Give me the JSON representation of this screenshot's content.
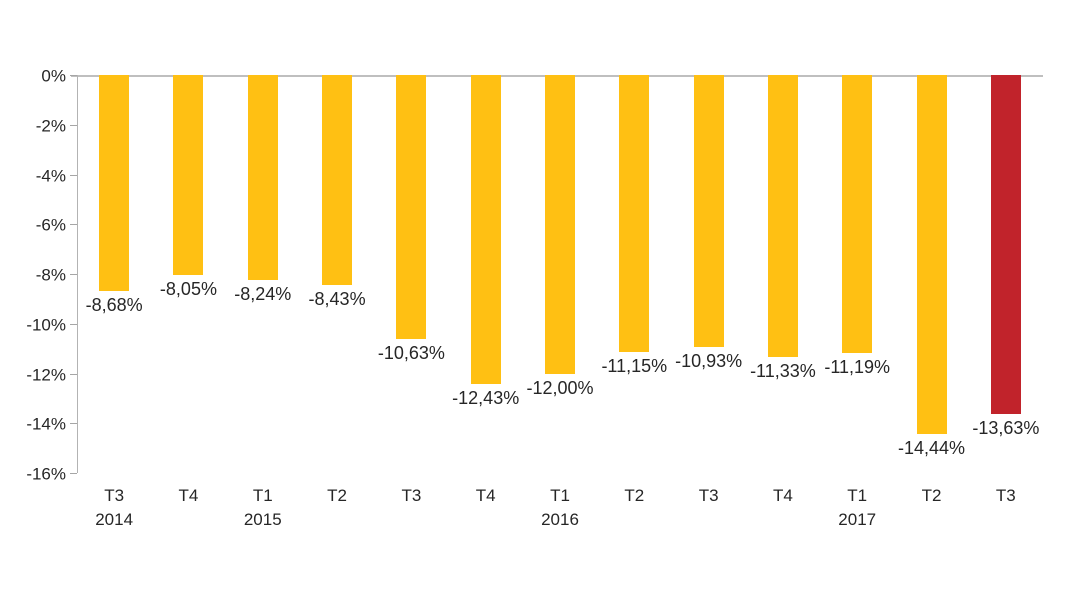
{
  "chart_data": {
    "type": "bar",
    "title": "",
    "xlabel": "",
    "ylabel": "",
    "categories": [
      {
        "quarter": "T3",
        "year": "2014"
      },
      {
        "quarter": "T4",
        "year": ""
      },
      {
        "quarter": "T1",
        "year": "2015"
      },
      {
        "quarter": "T2",
        "year": ""
      },
      {
        "quarter": "T3",
        "year": ""
      },
      {
        "quarter": "T4",
        "year": ""
      },
      {
        "quarter": "T1",
        "year": "2016"
      },
      {
        "quarter": "T2",
        "year": ""
      },
      {
        "quarter": "T3",
        "year": ""
      },
      {
        "quarter": "T4",
        "year": ""
      },
      {
        "quarter": "T1",
        "year": "2017"
      },
      {
        "quarter": "T2",
        "year": ""
      },
      {
        "quarter": "T3",
        "year": ""
      }
    ],
    "values": [
      -8.68,
      -8.05,
      -8.24,
      -8.43,
      -10.63,
      -12.43,
      -12.0,
      -11.15,
      -10.93,
      -11.33,
      -11.19,
      -14.44,
      -13.63
    ],
    "value_labels": [
      "-8,68%",
      "-8,05%",
      "-8,24%",
      "-8,43%",
      "-10,63%",
      "-12,43%",
      "-12,00%",
      "-11,15%",
      "-10,93%",
      "-11,33%",
      "-11,19%",
      "-14,44%",
      "-13,63%"
    ],
    "y_tick_labels": [
      "0%",
      "-2%",
      "-4%",
      "-6%",
      "-8%",
      "-10%",
      "-12%",
      "-14%",
      "-16%"
    ],
    "ylim": [
      0,
      -16
    ],
    "grid": false,
    "legend": false,
    "colors": {
      "bar": "#FFC013",
      "highlight": "#C1232B",
      "axis_line": "#b3b3b3",
      "text": "#262626"
    },
    "highlight_index": 12
  }
}
